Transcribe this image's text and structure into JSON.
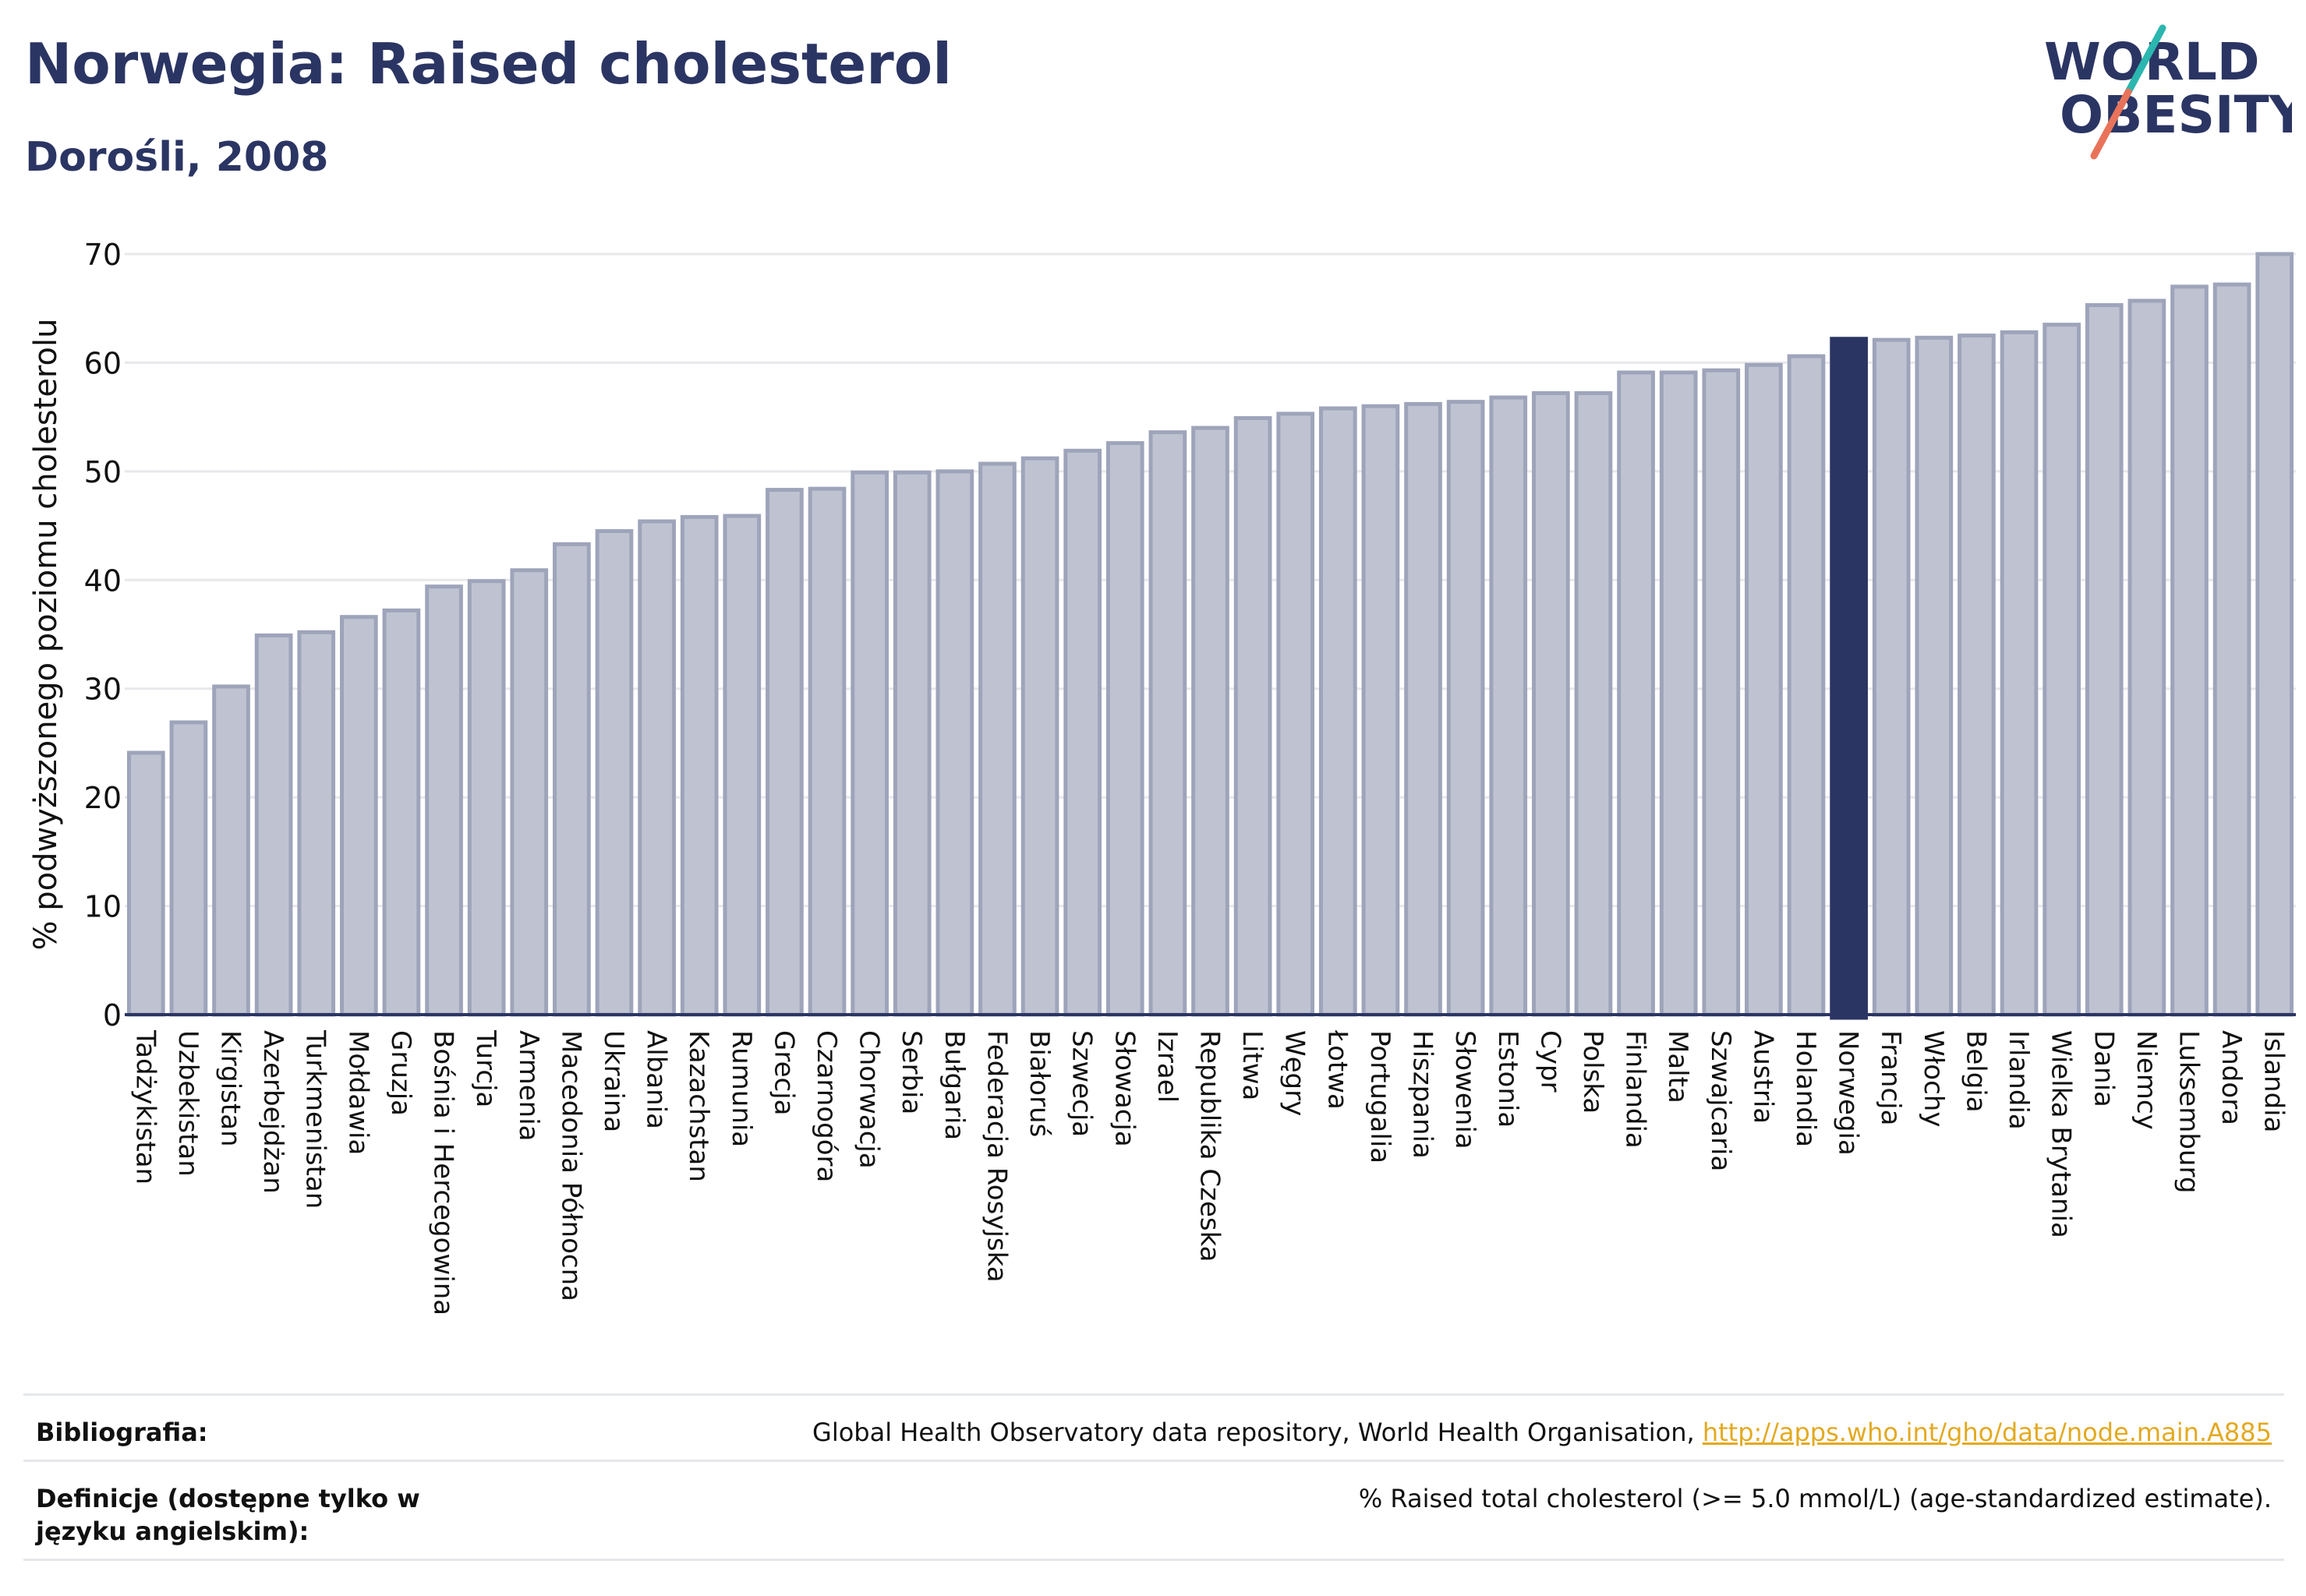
{
  "header": {
    "title": "Norwegia: Raised cholesterol",
    "subtitle": "Dorośli, 2008"
  },
  "logo": {
    "line1": "WORLD",
    "line2": "OBESITY",
    "accent_colors": [
      "#2bb6b0",
      "#e8735a"
    ]
  },
  "colors": {
    "bar": "#bfc3d1",
    "bar_stroke": "#9ea4ba",
    "highlight": "#2b3563",
    "text": "#2b3563",
    "grid": "#e8e8ec"
  },
  "chart_data": {
    "type": "bar",
    "title": "Norwegia: Raised cholesterol",
    "subtitle": "Dorośli, 2008",
    "xlabel": "",
    "ylabel": "% podwyższonego poziomu cholesterolu",
    "ylim": [
      0,
      70
    ],
    "yticks": [
      0,
      10,
      20,
      30,
      40,
      50,
      60,
      70
    ],
    "grid": true,
    "highlight": "Norwegia",
    "categories": [
      "Tadżykistan",
      "Uzbekistan",
      "Kirgistan",
      "Azerbejdżan",
      "Turkmenistan",
      "Mołdawia",
      "Gruzja",
      "Bośnia i Hercegowina",
      "Turcja",
      "Armenia",
      "Macedonia Północna",
      "Ukraina",
      "Albania",
      "Kazachstan",
      "Rumunia",
      "Grecja",
      "Czarnogóra",
      "Chorwacja",
      "Serbia",
      "Bułgaria",
      "Federacja Rosyjska",
      "Białoruś",
      "Szwecja",
      "Słowacja",
      "Izrael",
      "Republika Czeska",
      "Litwa",
      "Węgry",
      "Łotwa",
      "Portugalia",
      "Hiszpania",
      "Słowenia",
      "Estonia",
      "Cypr",
      "Polska",
      "Finlandia",
      "Malta",
      "Szwajcaria",
      "Austria",
      "Holandia",
      "Norwegia",
      "Francja",
      "Włochy",
      "Belgia",
      "Irlandia",
      "Wielka Brytania",
      "Dania",
      "Niemcy",
      "Luksemburg",
      "Andora",
      "Islandia"
    ],
    "values": [
      24.1,
      26.9,
      30.2,
      34.9,
      35.2,
      36.6,
      37.2,
      39.4,
      39.9,
      40.9,
      43.3,
      44.5,
      45.4,
      45.8,
      45.9,
      48.3,
      48.4,
      49.9,
      49.9,
      50.0,
      50.7,
      51.2,
      51.9,
      52.6,
      53.6,
      54.0,
      54.9,
      55.3,
      55.8,
      56.0,
      56.2,
      56.4,
      56.8,
      57.2,
      57.2,
      59.1,
      59.1,
      59.3,
      59.8,
      60.6,
      62.2,
      62.1,
      62.3,
      62.5,
      62.8,
      63.5,
      65.3,
      65.7,
      67.0,
      67.2,
      70.0
    ]
  },
  "references": [
    {
      "label": "Bibliografia:",
      "text": "Global Health Observatory data repository, World Health Organisation, ",
      "link": "http://apps.who.int/gho/data/node.main.A885"
    },
    {
      "label": "Definicje (dostępne tylko w języku angielskim):",
      "text": "% Raised total cholesterol (>= 5.0 mmol/L) (age-standardized estimate).",
      "link": ""
    }
  ]
}
